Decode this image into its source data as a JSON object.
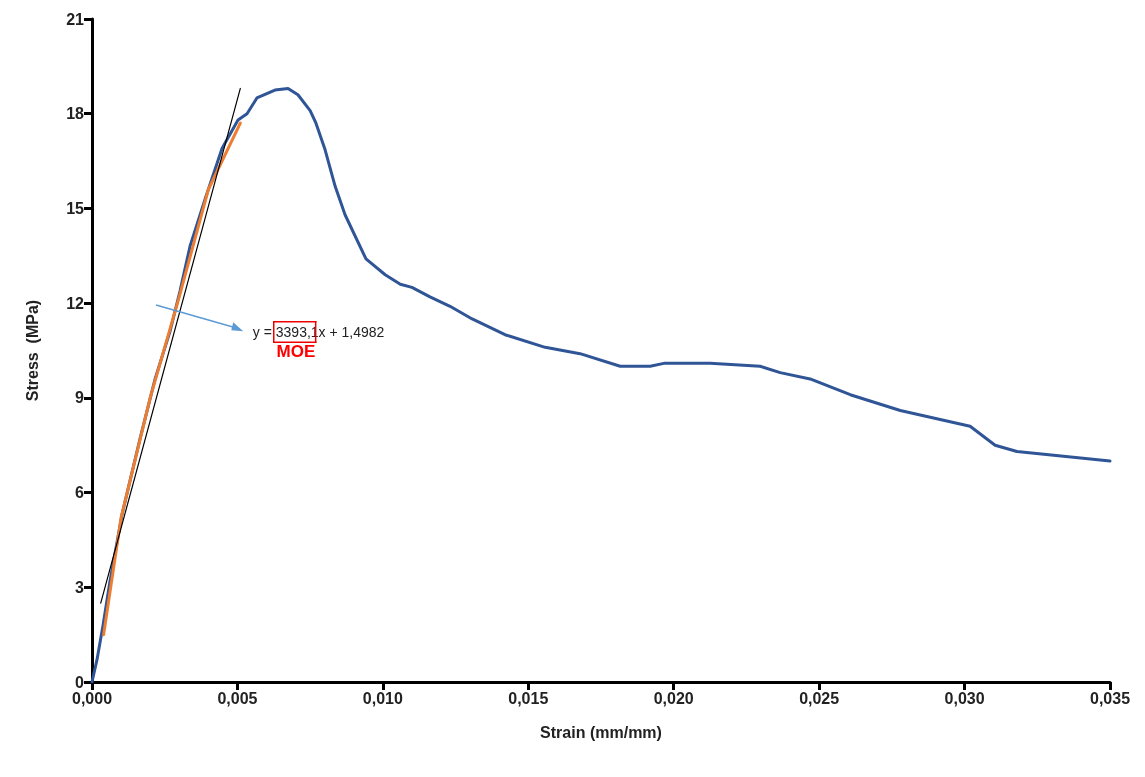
{
  "chart_data": {
    "type": "line",
    "xlabel": "Strain (mm/mm)",
    "ylabel": "Stress  (MPa)",
    "annotations": [
      "y = 3393,1x + 1,4982",
      "MOE"
    ],
    "xlim": [
      0,
      0.035
    ],
    "xticks": [
      {
        "value": 0,
        "label": "0,000"
      },
      {
        "value": 0.005,
        "label": "0,005"
      },
      {
        "value": 0.01,
        "label": "0,010"
      },
      {
        "value": 0.015,
        "label": "0,015"
      },
      {
        "value": 0.02,
        "label": "0,020"
      },
      {
        "value": 0.025,
        "label": "0,025"
      },
      {
        "value": 0.03,
        "label": "0,030"
      },
      {
        "value": 0.035,
        "label": "0,035"
      }
    ],
    "ylim": [
      0,
      21
    ],
    "yticks": [
      0,
      3,
      6,
      9,
      12,
      15,
      18,
      21
    ],
    "marker": "none",
    "series": [
      {
        "color": "#2f5597",
        "line_style": "solid",
        "x": [
          0,
          0.00017,
          0.00038,
          0.00062,
          0.00103,
          0.00165,
          0.00217,
          0.00268,
          0.00303,
          0.00337,
          0.00389,
          0.00447,
          0.00502,
          0.00533,
          0.00567,
          0.00629,
          0.00674,
          0.00708,
          0.0075,
          0.0077,
          0.008,
          0.00836,
          0.0087,
          0.00942,
          0.01008,
          0.0106,
          0.011,
          0.01162,
          0.01231,
          0.01307,
          0.0142,
          0.01558,
          0.01678,
          0.01816,
          0.01919,
          0.0197,
          0.02125,
          0.02297,
          0.02366,
          0.02469,
          0.02607,
          0.02779,
          0.03019,
          0.03105,
          0.0318,
          0.035
        ],
        "values": [
          0,
          0.7,
          1.8,
          3.2,
          5.3,
          7.7,
          9.6,
          11.1,
          12.4,
          13.8,
          15.3,
          16.9,
          17.8,
          18.0,
          18.5,
          18.75,
          18.8,
          18.6,
          18.1,
          17.7,
          16.9,
          15.7,
          14.8,
          13.4,
          12.9,
          12.6,
          12.5,
          12.2,
          11.9,
          11.5,
          11.0,
          10.6,
          10.4,
          10.0,
          10.0,
          10.1,
          10.1,
          10.0,
          9.8,
          9.6,
          9.1,
          8.6,
          8.1,
          7.5,
          7.3,
          7.0
        ]
      },
      {
        "color": "#ed7d31",
        "line_style": "solid",
        "x": [
          0.0004,
          0.001,
          0.002,
          0.003,
          0.004,
          0.0051
        ],
        "values": [
          1.5,
          5.2,
          9.0,
          12.2,
          15.6,
          17.7
        ]
      },
      {
        "color": "#000000",
        "line_style": "solid",
        "x": [
          0.0003,
          0.0051
        ],
        "values": [
          2.5,
          18.8
        ]
      }
    ]
  }
}
